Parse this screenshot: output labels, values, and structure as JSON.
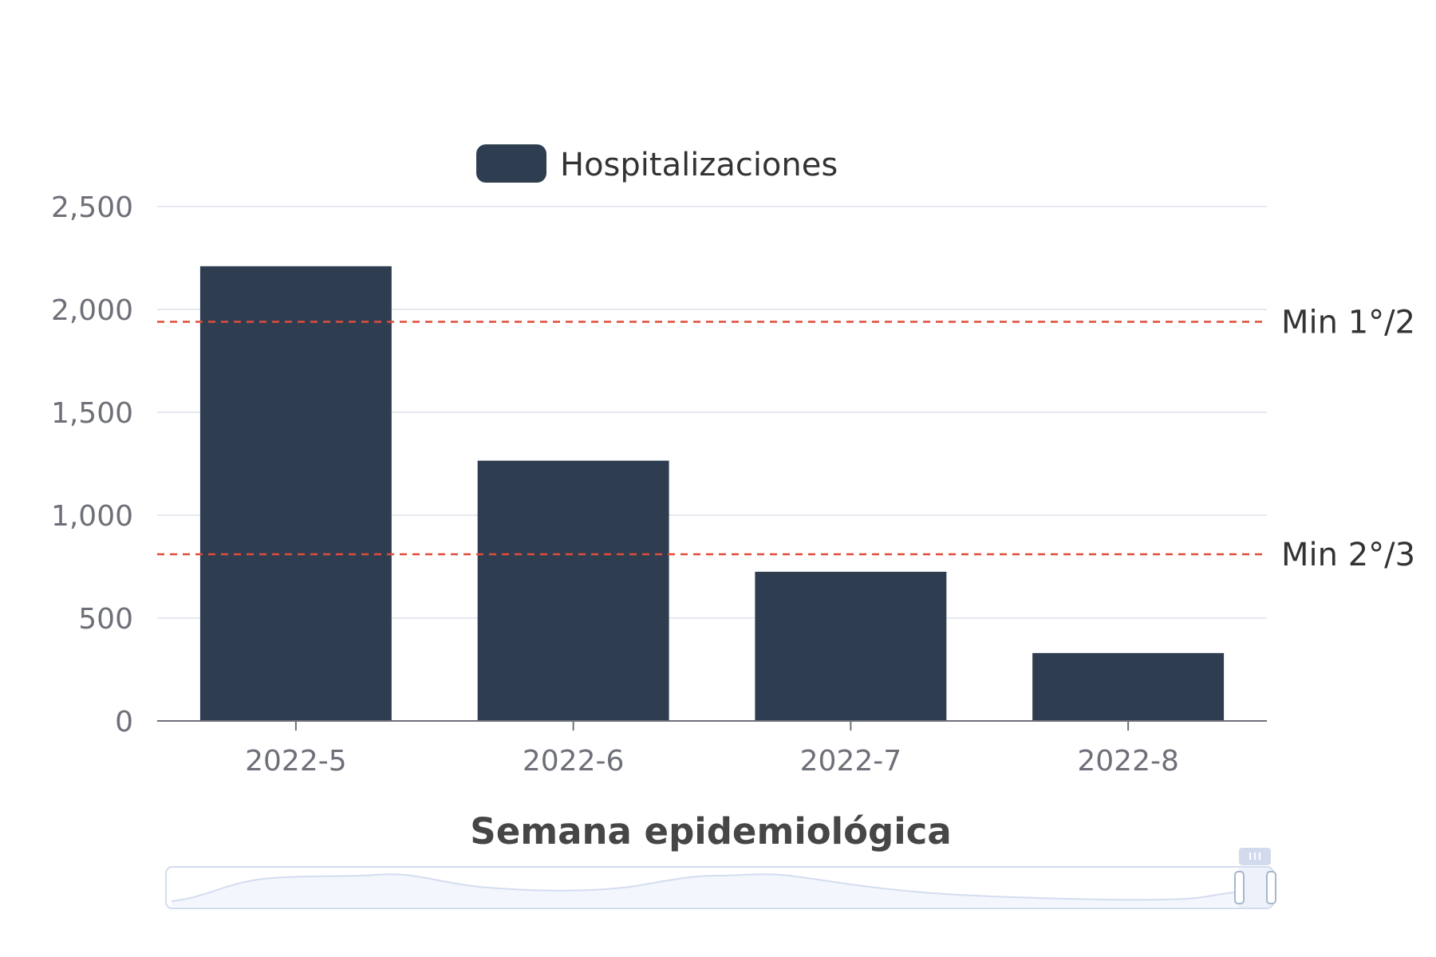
{
  "chart_data": {
    "type": "bar",
    "categories": [
      "2022-5",
      "2022-6",
      "2022-7",
      "2022-8"
    ],
    "series": [
      {
        "name": "Hospitalizaciones",
        "values": [
          2210,
          1265,
          725,
          330
        ]
      }
    ],
    "xlabel": "Semana epidemiológica",
    "ylabel": "",
    "ylim": [
      0,
      2500
    ],
    "yticks": [
      0,
      500,
      1000,
      1500,
      2000,
      2500
    ],
    "ytick_labels": [
      "0",
      "500",
      "1,000",
      "1,500",
      "2,000",
      "2,500"
    ],
    "grid": true,
    "legend_position": "top-center",
    "mark_lines": [
      {
        "label": "Min 1°/2",
        "value": 1940
      },
      {
        "label": "Min 2°/3",
        "value": 810
      }
    ],
    "data_zoom": {
      "start_percent": 0,
      "end_percent": 100
    }
  },
  "colors": {
    "bar": "#2e3e50",
    "mark_line": "#e04b3a",
    "grid": "#e6e9f0",
    "axis": "#6e7079",
    "zoom_border": "#d2dbee",
    "zoom_fill": "#dde6f6"
  },
  "icons": {
    "zoom_handle": "zoom-handle-icon"
  }
}
